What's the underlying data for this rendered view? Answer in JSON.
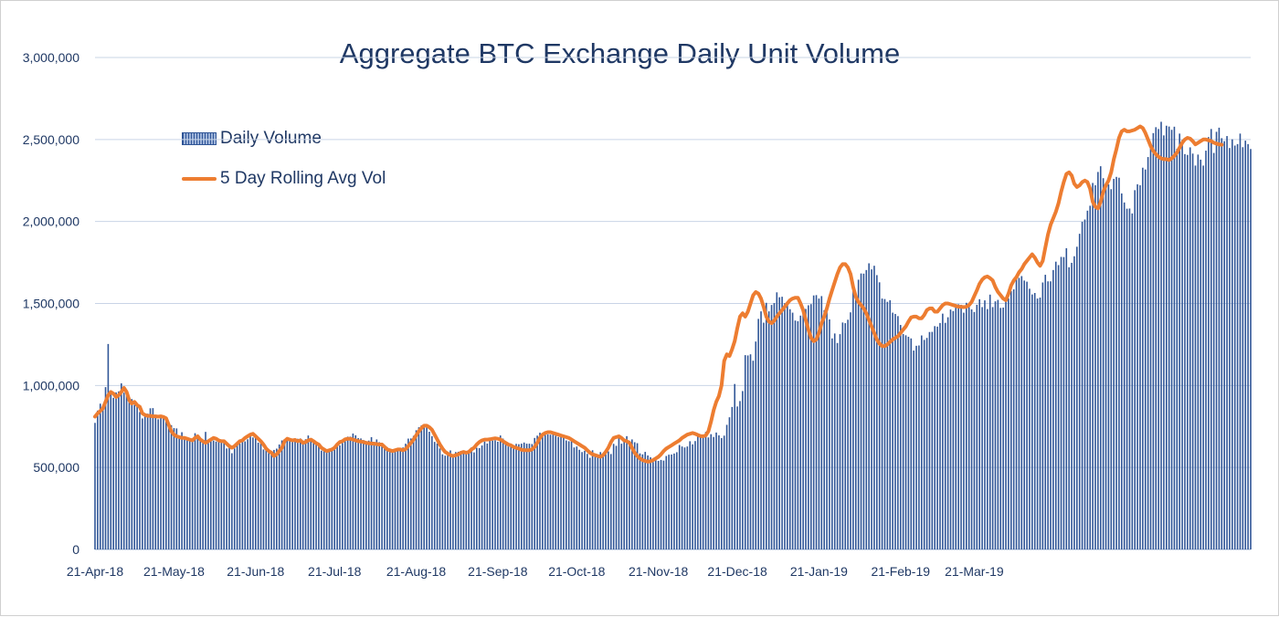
{
  "chart_data": {
    "type": "bar",
    "title": "Aggregate BTC Exchange Daily Unit Volume",
    "xlabel": "",
    "ylabel": "",
    "ylim": [
      0,
      3000000
    ],
    "yticks": [
      0,
      500000,
      1000000,
      1500000,
      2000000,
      2500000,
      3000000
    ],
    "ytick_labels": [
      "0",
      "500,000",
      "1,000,000",
      "1,500,000",
      "2,000,000",
      "2,500,000",
      "3,000,000"
    ],
    "x_start": "2018-04-21",
    "xticks": [
      {
        "date": "2018-04-21",
        "label": "21-Apr-18"
      },
      {
        "date": "2018-05-21",
        "label": "21-May-18"
      },
      {
        "date": "2018-06-21",
        "label": "21-Jun-18"
      },
      {
        "date": "2018-07-21",
        "label": "21-Jul-18"
      },
      {
        "date": "2018-08-21",
        "label": "21-Aug-18"
      },
      {
        "date": "2018-09-21",
        "label": "21-Sep-18"
      },
      {
        "date": "2018-10-21",
        "label": "21-Oct-18"
      },
      {
        "date": "2018-11-21",
        "label": "21-Nov-18"
      },
      {
        "date": "2018-12-21",
        "label": "21-Dec-18"
      },
      {
        "date": "2019-01-21",
        "label": "21-Jan-19"
      },
      {
        "date": "2019-02-21",
        "label": "21-Feb-19"
      },
      {
        "date": "2019-03-21",
        "label": "21-Mar-19"
      }
    ],
    "grid": true,
    "legend_placement": "top-left",
    "series": [
      {
        "name": "Daily Volume",
        "kind": "bar",
        "color": "#2f5597",
        "values": [
          772000,
          847000,
          889000,
          857000,
          990000,
          1253000,
          963000,
          925000,
          958000,
          964000,
          1013000,
          956000,
          938000,
          915000,
          917000,
          882000,
          884000,
          838000,
          799000,
          824000,
          828000,
          861000,
          862000,
          809000,
          794000,
          809000,
          818000,
          794000,
          768000,
          758000,
          740000,
          738000,
          694000,
          715000,
          679000,
          678000,
          671000,
          657000,
          709000,
          681000,
          675000,
          660000,
          717000,
          656000,
          674000,
          664000,
          658000,
          665000,
          656000,
          656000,
          616000,
          622000,
          587000,
          616000,
          642000,
          645000,
          665000,
          659000,
          672000,
          690000,
          683000,
          686000,
          651000,
          664000,
          610000,
          621000,
          589000,
          583000,
          607000,
          615000,
          640000,
          665000,
          673000,
          678000,
          676000,
          667000,
          678000,
          675000,
          677000,
          656000,
          672000,
          695000,
          677000,
          665000,
          650000,
          636000,
          603000,
          600000,
          600000,
          604000,
          608000,
          608000,
          629000,
          635000,
          649000,
          674000,
          688000,
          688000,
          707000,
          696000,
          679000,
          677000,
          667000,
          660000,
          664000,
          685000,
          656000,
          671000,
          654000,
          650000,
          635000,
          624000,
          612000,
          599000,
          611000,
          616000,
          606000,
          622000,
          645000,
          676000,
          677000,
          693000,
          727000,
          745000,
          757000,
          753000,
          748000,
          718000,
          691000,
          656000,
          646000,
          616000,
          580000,
          572000,
          592000,
          604000,
          572000,
          594000,
          596000,
          601000,
          597000,
          596000,
          596000,
          622000,
          592000,
          620000,
          618000,
          634000,
          658000,
          646000,
          682000,
          664000,
          666000,
          657000,
          695000,
          676000,
          659000,
          628000,
          636000,
          635000,
          644000,
          642000,
          645000,
          652000,
          645000,
          645000,
          643000,
          680000,
          694000,
          712000,
          701000,
          716000,
          702000,
          700000,
          717000,
          694000,
          686000,
          698000,
          685000,
          665000,
          660000,
          665000,
          622000,
          628000,
          608000,
          594000,
          602000,
          583000,
          559000,
          605000,
          576000,
          568000,
          594000,
          567000,
          580000,
          598000,
          582000,
          644000,
          632000,
          690000,
          645000,
          662000,
          691000,
          663000,
          671000,
          654000,
          648000,
          586000,
          580000,
          595000,
          573000,
          562000,
          533000,
          552000,
          540000,
          546000,
          542000,
          570000,
          578000,
          579000,
          585000,
          593000,
          637000,
          628000,
          622000,
          628000,
          660000,
          641000,
          661000,
          689000,
          699000,
          698000,
          717000,
          683000,
          703000,
          686000,
          713000,
          696000,
          679000,
          694000,
          760000,
          806000,
          869000,
          1009000,
          872000,
          905000,
          966000,
          1185000,
          1183000,
          1190000,
          1151000,
          1268000,
          1406000,
          1452000,
          1383000,
          1504000,
          1452000,
          1491000,
          1503000,
          1568000,
          1538000,
          1541000,
          1502000,
          1504000,
          1465000,
          1444000,
          1396000,
          1392000,
          1426000,
          1458000,
          1467000,
          1489000,
          1496000,
          1549000,
          1551000,
          1530000,
          1545000,
          1459000,
          1446000,
          1403000,
          1287000,
          1317000,
          1259000,
          1313000,
          1384000,
          1380000,
          1401000,
          1446000,
          1591000,
          1541000,
          1645000,
          1683000,
          1682000,
          1704000,
          1745000,
          1708000,
          1730000,
          1673000,
          1629000,
          1530000,
          1527000,
          1510000,
          1520000,
          1444000,
          1436000,
          1423000,
          1369000,
          1314000,
          1306000,
          1297000,
          1287000,
          1213000,
          1242000,
          1244000,
          1305000,
          1278000,
          1290000,
          1326000,
          1327000,
          1362000,
          1359000,
          1381000,
          1438000,
          1382000,
          1416000,
          1463000,
          1454000,
          1495000,
          1495000,
          1492000,
          1444000,
          1504000,
          1479000,
          1464000,
          1448000,
          1492000,
          1526000,
          1478000,
          1519000,
          1466000,
          1554000,
          1478000,
          1513000,
          1522000,
          1473000,
          1475000,
          1526000,
          1531000,
          1576000,
          1586000,
          1657000,
          1656000,
          1667000,
          1640000,
          1633000,
          1590000,
          1555000,
          1564000,
          1530000,
          1536000,
          1628000,
          1675000,
          1635000,
          1635000,
          1704000,
          1755000,
          1734000,
          1784000,
          1783000,
          1837000,
          1721000,
          1748000,
          1788000,
          1846000,
          1925000,
          1998000,
          2012000,
          2066000,
          2096000,
          2235000,
          2221000,
          2302000,
          2337000,
          2264000,
          2202000,
          2226000,
          2197000,
          2260000,
          2272000,
          2267000,
          2171000,
          2116000,
          2078000,
          2079000,
          2049000,
          2191000,
          2227000,
          2221000,
          2328000,
          2317000,
          2393000,
          2454000,
          2539000,
          2575000,
          2564000,
          2608000,
          2525000,
          2584000,
          2579000,
          2559000,
          2578000,
          2443000,
          2536000,
          2498000,
          2411000,
          2406000,
          2452000,
          2414000,
          2341000,
          2408000,
          2377000,
          2341000,
          2432000,
          2515000,
          2564000,
          2418000,
          2547000,
          2572000,
          2508000,
          2490000,
          2521000,
          2448000,
          2501000,
          2463000,
          2472000,
          2536000,
          2453000,
          2493000,
          2472000,
          2442000
        ]
      },
      {
        "name": "5 Day Rolling Avg Vol",
        "kind": "line",
        "color": "#ed7d31",
        "values": [
          810000,
          830000,
          845000,
          860000,
          900000,
          940000,
          960000,
          950000,
          930000,
          940000,
          960000,
          985000,
          960000,
          910000,
          890000,
          900000,
          880000,
          870000,
          830000,
          820000,
          815000,
          815000,
          812000,
          812000,
          810000,
          812000,
          808000,
          800000,
          760000,
          720000,
          700000,
          690000,
          685000,
          680000,
          680000,
          675000,
          670000,
          665000,
          680000,
          690000,
          670000,
          660000,
          650000,
          660000,
          670000,
          680000,
          675000,
          665000,
          660000,
          660000,
          645000,
          630000,
          620000,
          630000,
          645000,
          660000,
          665000,
          680000,
          690000,
          700000,
          705000,
          690000,
          675000,
          660000,
          640000,
          615000,
          600000,
          590000,
          570000,
          580000,
          600000,
          620000,
          660000,
          675000,
          670000,
          665000,
          668000,
          660000,
          665000,
          650000,
          655000,
          665000,
          670000,
          660000,
          648000,
          640000,
          620000,
          610000,
          600000,
          605000,
          610000,
          620000,
          640000,
          655000,
          660000,
          672000,
          675000,
          675000,
          670000,
          665000,
          660000,
          658000,
          655000,
          650000,
          648000,
          646000,
          645000,
          643000,
          640000,
          640000,
          625000,
          610000,
          605000,
          600000,
          605000,
          610000,
          610000,
          605000,
          612000,
          630000,
          650000,
          670000,
          695000,
          720000,
          740000,
          755000,
          755000,
          745000,
          730000,
          700000,
          670000,
          640000,
          615000,
          595000,
          585000,
          575000,
          570000,
          575000,
          580000,
          590000,
          595000,
          590000,
          595000,
          610000,
          620000,
          640000,
          655000,
          665000,
          670000,
          670000,
          672000,
          675000,
          678000,
          675000,
          670000,
          660000,
          650000,
          640000,
          635000,
          625000,
          620000,
          615000,
          608000,
          605000,
          605000,
          605000,
          610000,
          625000,
          650000,
          680000,
          700000,
          710000,
          715000,
          715000,
          710000,
          705000,
          700000,
          695000,
          690000,
          685000,
          680000,
          670000,
          660000,
          650000,
          640000,
          630000,
          620000,
          605000,
          590000,
          580000,
          575000,
          570000,
          565000,
          575000,
          595000,
          620000,
          655000,
          680000,
          685000,
          690000,
          680000,
          665000,
          660000,
          650000,
          620000,
          590000,
          570000,
          555000,
          545000,
          540000,
          535000,
          538000,
          545000,
          555000,
          565000,
          580000,
          600000,
          615000,
          625000,
          635000,
          645000,
          655000,
          665000,
          680000,
          690000,
          700000,
          705000,
          710000,
          705000,
          698000,
          692000,
          690000,
          695000,
          720000,
          780000,
          850000,
          900000,
          935000,
          1000000,
          1150000,
          1190000,
          1180000,
          1220000,
          1270000,
          1350000,
          1420000,
          1440000,
          1420000,
          1450000,
          1500000,
          1550000,
          1570000,
          1560000,
          1530000,
          1480000,
          1420000,
          1390000,
          1380000,
          1395000,
          1420000,
          1440000,
          1460000,
          1480000,
          1500000,
          1520000,
          1530000,
          1535000,
          1535000,
          1500000,
          1460000,
          1400000,
          1340000,
          1290000,
          1270000,
          1280000,
          1320000,
          1380000,
          1420000,
          1470000,
          1530000,
          1580000,
          1630000,
          1680000,
          1720000,
          1740000,
          1740000,
          1720000,
          1680000,
          1600000,
          1540000,
          1510000,
          1490000,
          1470000,
          1440000,
          1400000,
          1360000,
          1320000,
          1280000,
          1255000,
          1240000,
          1240000,
          1250000,
          1265000,
          1280000,
          1290000,
          1300000,
          1320000,
          1340000,
          1360000,
          1390000,
          1415000,
          1420000,
          1420000,
          1410000,
          1410000,
          1430000,
          1460000,
          1470000,
          1470000,
          1450000,
          1450000,
          1470000,
          1490000,
          1500000,
          1500000,
          1495000,
          1490000,
          1485000,
          1480000,
          1480000,
          1478000,
          1480000,
          1490000,
          1510000,
          1545000,
          1580000,
          1620000,
          1645000,
          1660000,
          1665000,
          1655000,
          1640000,
          1600000,
          1570000,
          1550000,
          1530000,
          1520000,
          1560000,
          1610000,
          1640000,
          1660000,
          1690000,
          1710000,
          1740000,
          1760000,
          1780000,
          1800000,
          1780000,
          1750000,
          1730000,
          1760000,
          1840000,
          1920000,
          1980000,
          2020000,
          2060000,
          2110000,
          2180000,
          2240000,
          2290000,
          2300000,
          2280000,
          2230000,
          2210000,
          2220000,
          2240000,
          2250000,
          2240000,
          2200000,
          2120000,
          2090000,
          2080000,
          2120000,
          2180000,
          2220000,
          2250000,
          2300000,
          2380000,
          2440000,
          2510000,
          2550000,
          2560000,
          2550000,
          2550000,
          2555000,
          2560000,
          2570000,
          2580000,
          2570000,
          2540000,
          2500000,
          2460000,
          2430000,
          2410000,
          2395000,
          2385000,
          2380000,
          2380000,
          2375000,
          2385000,
          2400000,
          2420000,
          2450000,
          2480000,
          2500000,
          2510000,
          2505000,
          2490000,
          2470000,
          2480000,
          2490000,
          2500000,
          2500000,
          2495000,
          2490000,
          2480000,
          2475000,
          2470000,
          2468000
        ]
      }
    ]
  }
}
